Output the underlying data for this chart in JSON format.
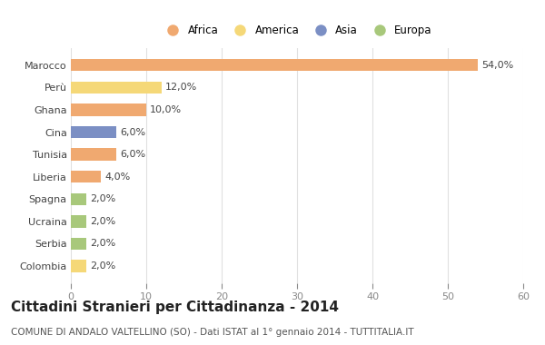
{
  "categories": [
    "Marocco",
    "Perù",
    "Ghana",
    "Cina",
    "Tunisia",
    "Liberia",
    "Spagna",
    "Ucraina",
    "Serbia",
    "Colombia"
  ],
  "values": [
    54.0,
    12.0,
    10.0,
    6.0,
    6.0,
    4.0,
    2.0,
    2.0,
    2.0,
    2.0
  ],
  "colors": [
    "#F0A970",
    "#F5D878",
    "#F0A970",
    "#7B8FC4",
    "#F0A970",
    "#F0A970",
    "#A8C87B",
    "#A8C87B",
    "#A8C87B",
    "#F5D878"
  ],
  "legend_items": [
    {
      "label": "Africa",
      "color": "#F0A970"
    },
    {
      "label": "America",
      "color": "#F5D878"
    },
    {
      "label": "Asia",
      "color": "#7B8FC4"
    },
    {
      "label": "Europa",
      "color": "#A8C87B"
    }
  ],
  "xlim": [
    0,
    60
  ],
  "xticks": [
    0,
    10,
    20,
    30,
    40,
    50,
    60
  ],
  "title": "Cittadini Stranieri per Cittadinanza - 2014",
  "subtitle": "COMUNE DI ANDALO VALTELLINO (SO) - Dati ISTAT al 1° gennaio 2014 - TUTTITALIA.IT",
  "bg_color": "#ffffff",
  "grid_color": "#e0e0e0",
  "bar_height": 0.55,
  "title_fontsize": 11,
  "subtitle_fontsize": 7.5,
  "label_fontsize": 8,
  "tick_fontsize": 8
}
